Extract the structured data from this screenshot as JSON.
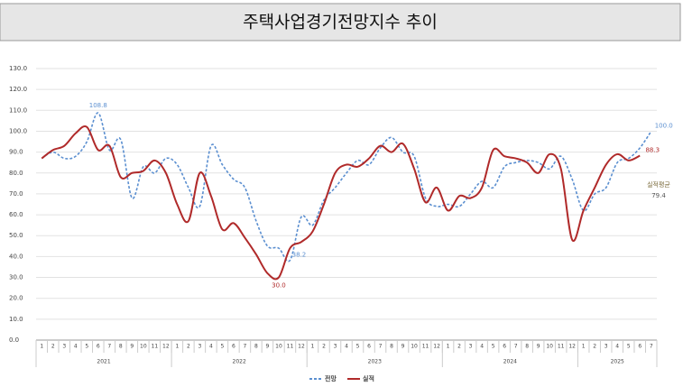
{
  "chart_data": {
    "type": "line",
    "title": "주택사업경기전망지수 추이",
    "categories": [
      "1",
      "2",
      "3",
      "4",
      "5",
      "6",
      "7",
      "8",
      "9",
      "10",
      "11",
      "12",
      "1",
      "2",
      "3",
      "4",
      "5",
      "6",
      "7",
      "8",
      "9",
      "10",
      "11",
      "12",
      "1",
      "2",
      "3",
      "4",
      "5",
      "6",
      "7",
      "8",
      "9",
      "10",
      "11",
      "12",
      "1",
      "2",
      "3",
      "4",
      "5",
      "6",
      "7",
      "8",
      "9",
      "10",
      "11",
      "12",
      "1",
      "2",
      "3",
      "4",
      "5",
      "6",
      "7"
    ],
    "years": [
      "2021",
      "2022",
      "2023",
      "2024",
      "2025"
    ],
    "ylim": [
      0,
      130
    ],
    "yticks": [
      {
        "value": 0,
        "label": "0.0"
      },
      {
        "value": 10,
        "label": "10.0"
      },
      {
        "value": 20,
        "label": "20.0"
      },
      {
        "value": 30,
        "label": "30.0"
      },
      {
        "value": 40,
        "label": "40.0"
      },
      {
        "value": 50,
        "label": "50.0"
      },
      {
        "value": 60,
        "label": "60.0"
      },
      {
        "value": 70,
        "label": "70.0"
      },
      {
        "value": 80,
        "label": "80.0"
      },
      {
        "value": 90,
        "label": "90.0"
      },
      {
        "value": 100,
        "label": "100.0"
      },
      {
        "value": 110,
        "label": "110.0"
      },
      {
        "value": 120,
        "label": "120.0"
      },
      {
        "value": 130,
        "label": "130.0"
      }
    ],
    "grid": true,
    "legend": "bottom",
    "series": [
      {
        "name": "전망",
        "color": "#5b8fd0",
        "dash": true,
        "values": [
          87,
          90,
          87,
          88,
          95,
          108.8,
          91,
          96,
          68,
          83,
          80,
          87,
          84,
          73,
          64,
          93,
          84,
          77,
          73,
          57,
          45,
          44,
          38.2,
          59,
          55,
          67,
          73,
          80,
          86,
          84,
          92,
          97,
          90,
          88,
          68,
          64,
          65,
          64,
          70,
          76,
          73,
          83,
          85,
          86,
          85,
          82,
          88,
          77,
          62,
          70,
          73,
          85,
          87,
          92,
          100
        ],
        "value_labels": [
          null,
          null,
          null,
          null,
          null,
          "108.8",
          null,
          null,
          null,
          null,
          null,
          null,
          null,
          null,
          null,
          null,
          null,
          null,
          null,
          null,
          null,
          null,
          "38.2",
          null,
          null,
          null,
          null,
          null,
          null,
          null,
          null,
          null,
          null,
          null,
          null,
          null,
          null,
          null,
          null,
          null,
          null,
          null,
          null,
          null,
          null,
          null,
          null,
          null,
          null,
          null,
          null,
          null,
          null,
          null,
          "100.0"
        ]
      },
      {
        "name": "실적",
        "color": "#b02a2a",
        "dash": false,
        "values": [
          87,
          91,
          93,
          99,
          102,
          91,
          93,
          78,
          80,
          81,
          86,
          80,
          65,
          57,
          80,
          69,
          53,
          56,
          49,
          41,
          32,
          30,
          44,
          47,
          52,
          65,
          80,
          84,
          83,
          87,
          93,
          90,
          94,
          82,
          66,
          73,
          62,
          69,
          68,
          73,
          91,
          88,
          87,
          85,
          80,
          89,
          82,
          48,
          62,
          73,
          84,
          89,
          86,
          88.3,
          null
        ],
        "value_labels": [
          null,
          null,
          null,
          null,
          null,
          null,
          null,
          null,
          null,
          null,
          null,
          null,
          null,
          null,
          null,
          null,
          null,
          null,
          null,
          null,
          null,
          "30.0",
          null,
          null,
          null,
          null,
          null,
          null,
          null,
          null,
          null,
          null,
          null,
          null,
          null,
          null,
          null,
          null,
          null,
          null,
          null,
          null,
          null,
          null,
          null,
          null,
          null,
          null,
          null,
          null,
          null,
          null,
          null,
          "88.3",
          null
        ]
      }
    ],
    "average": {
      "label": "실적평균",
      "value": 79.4
    }
  }
}
